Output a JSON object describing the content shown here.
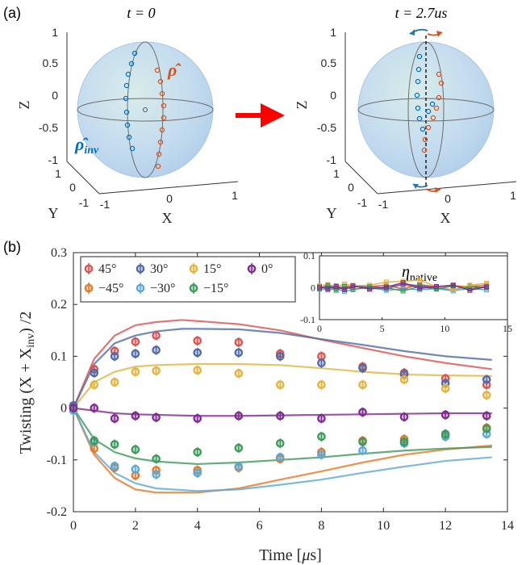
{
  "panel_a": {
    "label": "(a)",
    "left_sphere": {
      "title": "t = 0",
      "axis_x_label": "X",
      "axis_y_label": "Y",
      "axis_z_label": "Z",
      "z_ticks": [
        "1",
        "0.5",
        "0",
        "-0.5",
        "-1"
      ],
      "x_ticks": [
        "-1",
        "0",
        "1"
      ],
      "y_ticks": [
        "1",
        "0",
        "-1"
      ],
      "rho_label": "ρ̂",
      "rho_inv_label": "ρ̂",
      "rho_inv_subscript": "inv"
    },
    "right_sphere": {
      "title": "t = 2.7us",
      "axis_x_label": "X",
      "axis_y_label": "Y",
      "axis_z_label": "Z",
      "z_ticks": [
        "1",
        "0.5",
        "0",
        "-0.5",
        "-1"
      ],
      "x_ticks": [
        "-1",
        "0",
        "1"
      ],
      "y_ticks": [
        "1",
        "0",
        "-1"
      ]
    },
    "colors": {
      "rho": "#d9541a",
      "rho_inv": "#0072bd",
      "arrow": "#ff0000",
      "sphere": "#b9d6ee"
    }
  },
  "panel_b": {
    "label": "(b)"
  },
  "chart_data": [
    {
      "type": "scatter",
      "title": "",
      "xlabel": "Time [μs]",
      "ylabel": "Twisting (X + X_inv) /2",
      "ylabel_parts": {
        "main": "Twisting (X + X",
        "sub": "inv",
        "end": ") /2"
      },
      "xlabel_parts": {
        "main": "Time [",
        "mu": "μ",
        "end": "s]"
      },
      "xlim": [
        0,
        14
      ],
      "ylim": [
        -0.2,
        0.3
      ],
      "xticks": [
        0,
        2,
        4,
        6,
        8,
        10,
        12,
        14
      ],
      "yticks": [
        -0.2,
        -0.1,
        0,
        0.1,
        0.2,
        0.3
      ],
      "ytick_labels": [
        "-0.2",
        "-0.1",
        "0",
        "0.1",
        "0.2",
        "0.3"
      ],
      "legend_position": "top-left",
      "x": [
        0,
        0.67,
        1.33,
        2.0,
        2.67,
        4.0,
        5.33,
        6.67,
        8.0,
        9.33,
        10.67,
        12.0,
        13.33
      ],
      "series": [
        {
          "name": "45°",
          "color": "#d9534f",
          "values": [
            0.005,
            0.075,
            0.11,
            0.128,
            0.14,
            0.13,
            0.127,
            0.105,
            0.1,
            0.08,
            0.068,
            0.057,
            0.045
          ],
          "model_x": [
            0,
            0.67,
            1.33,
            2,
            2.67,
            3.5,
            4,
            5.33,
            6.67,
            8,
            9.33,
            10.67,
            12,
            13.5
          ],
          "model": [
            0,
            0.095,
            0.14,
            0.16,
            0.166,
            0.17,
            0.168,
            0.162,
            0.15,
            0.132,
            0.116,
            0.1,
            0.087,
            0.075
          ]
        },
        {
          "name": "−45°",
          "color": "#e87722",
          "values": [
            0.0,
            -0.078,
            -0.115,
            -0.13,
            -0.12,
            -0.12,
            -0.115,
            -0.098,
            -0.085,
            -0.063,
            -0.06,
            -0.053,
            -0.038
          ],
          "model_x": [
            0,
            0.67,
            1.33,
            2,
            2.67,
            4,
            5.33,
            6.67,
            8,
            9.33,
            10.67,
            12,
            13.5
          ],
          "model": [
            0,
            -0.09,
            -0.135,
            -0.157,
            -0.163,
            -0.163,
            -0.155,
            -0.138,
            -0.122,
            -0.105,
            -0.09,
            -0.08,
            -0.072
          ]
        },
        {
          "name": "30°",
          "color": "#4f6aa8",
          "values": [
            0.005,
            0.068,
            0.1,
            0.105,
            0.112,
            0.107,
            0.107,
            0.1,
            0.087,
            0.077,
            0.065,
            0.048,
            0.055
          ],
          "model_x": [
            0,
            0.67,
            1.33,
            2,
            2.67,
            3.5,
            4,
            5.33,
            6.67,
            8,
            9.33,
            10.67,
            12,
            13.5
          ],
          "model": [
            0,
            0.085,
            0.125,
            0.14,
            0.148,
            0.153,
            0.153,
            0.152,
            0.145,
            0.133,
            0.122,
            0.11,
            0.1,
            0.093
          ]
        },
        {
          "name": "−30°",
          "color": "#5aa8d6",
          "values": [
            -0.005,
            -0.065,
            -0.112,
            -0.118,
            -0.128,
            -0.125,
            -0.113,
            -0.095,
            -0.09,
            -0.082,
            -0.068,
            -0.055,
            -0.05
          ],
          "model_x": [
            0,
            0.67,
            1.33,
            2,
            2.67,
            4,
            5.33,
            6.67,
            8,
            9.33,
            10.67,
            12,
            13.5
          ],
          "model": [
            0,
            -0.085,
            -0.125,
            -0.145,
            -0.155,
            -0.16,
            -0.157,
            -0.148,
            -0.138,
            -0.125,
            -0.113,
            -0.102,
            -0.095
          ]
        },
        {
          "name": "15°",
          "color": "#e2b43c",
          "values": [
            0.0,
            0.045,
            0.05,
            0.07,
            0.072,
            0.073,
            0.067,
            0.045,
            0.045,
            0.045,
            0.055,
            0.038,
            0.025
          ],
          "model_x": [
            0,
            0.67,
            1.33,
            2,
            2.67,
            4,
            5.33,
            6.67,
            8,
            9.33,
            10.67,
            12,
            13.5
          ],
          "model": [
            0,
            0.05,
            0.07,
            0.08,
            0.083,
            0.085,
            0.085,
            0.083,
            0.077,
            0.07,
            0.065,
            0.063,
            0.062
          ]
        },
        {
          "name": "−15°",
          "color": "#3a9a58",
          "values": [
            0.0,
            -0.063,
            -0.07,
            -0.08,
            -0.098,
            -0.085,
            -0.077,
            -0.068,
            -0.055,
            -0.065,
            -0.065,
            -0.05,
            -0.04
          ],
          "model_x": [
            0,
            0.67,
            1.33,
            2,
            2.67,
            4,
            5.33,
            6.67,
            8,
            9.33,
            10.67,
            12,
            13.5
          ],
          "model": [
            0,
            -0.06,
            -0.085,
            -0.097,
            -0.103,
            -0.108,
            -0.105,
            -0.1,
            -0.095,
            -0.088,
            -0.082,
            -0.078,
            -0.075
          ]
        },
        {
          "name": "0°",
          "color": "#7f2a8f",
          "values": [
            0.0,
            0.0,
            -0.02,
            -0.015,
            -0.018,
            -0.02,
            -0.015,
            -0.015,
            -0.02,
            -0.008,
            -0.017,
            -0.013,
            -0.015
          ],
          "model_x": [
            0,
            0.67,
            1.33,
            2,
            2.67,
            4,
            5.33,
            6.67,
            8,
            9.33,
            10.67,
            12,
            13.5
          ],
          "model": [
            0,
            -0.005,
            -0.01,
            -0.012,
            -0.013,
            -0.015,
            -0.015,
            -0.014,
            -0.013,
            -0.012,
            -0.011,
            -0.01,
            -0.01
          ]
        }
      ]
    },
    {
      "type": "line",
      "title": "η_native",
      "title_parts": {
        "main": "η",
        "sub": "native"
      },
      "xlim": [
        0,
        15
      ],
      "ylim": [
        -0.1,
        0.1
      ],
      "xticks": [
        0,
        5,
        10,
        15
      ],
      "yticks": [
        -0.1,
        0,
        0.1
      ],
      "ytick_labels": [
        "-0.1",
        "0",
        "0.1"
      ],
      "x": [
        0,
        0.67,
        1.33,
        2.0,
        2.67,
        4.0,
        5.33,
        6.67,
        8.0,
        9.33,
        10.67,
        12.0,
        13.33
      ],
      "series": [
        {
          "name": "45°",
          "color": "#d9534f",
          "values": [
            0.0,
            0.005,
            -0.003,
            0.006,
            0.002,
            0.004,
            0.008,
            -0.004,
            0.01,
            0.003,
            0.008,
            -0.003,
            0.005
          ]
        },
        {
          "name": "−45°",
          "color": "#e87722",
          "values": [
            0.003,
            -0.004,
            0.006,
            -0.002,
            0.007,
            -0.005,
            0.003,
            0.008,
            0.002,
            -0.003,
            0.006,
            0.004,
            0.009
          ]
        },
        {
          "name": "30°",
          "color": "#4f6aa8",
          "values": [
            -0.002,
            0.008,
            0.002,
            -0.006,
            0.006,
            0.002,
            -0.004,
            0.012,
            0.006,
            0.0,
            -0.006,
            0.005,
            0.0
          ]
        },
        {
          "name": "−30°",
          "color": "#5aa8d6",
          "values": [
            -0.004,
            -0.007,
            -0.003,
            -0.012,
            -0.005,
            0.0,
            -0.008,
            -0.004,
            -0.006,
            -0.003,
            -0.01,
            -0.002,
            -0.007
          ]
        },
        {
          "name": "15°",
          "color": "#e2b43c",
          "values": [
            0.006,
            0.01,
            0.004,
            0.012,
            0.006,
            0.008,
            0.018,
            0.02,
            0.024,
            0.003,
            -0.006,
            0.008,
            0.014
          ]
        },
        {
          "name": "−15°",
          "color": "#3a9a58",
          "values": [
            -0.004,
            0.006,
            -0.008,
            0.004,
            -0.006,
            0.003,
            0.0,
            -0.01,
            0.004,
            -0.004,
            0.006,
            -0.003,
            0.002
          ]
        },
        {
          "name": "0°",
          "color": "#7f2a8f",
          "values": [
            0.002,
            -0.003,
            0.004,
            -0.006,
            0.006,
            -0.004,
            0.002,
            0.016,
            -0.002,
            0.004,
            0.008,
            -0.008,
            0.003
          ]
        }
      ]
    }
  ]
}
